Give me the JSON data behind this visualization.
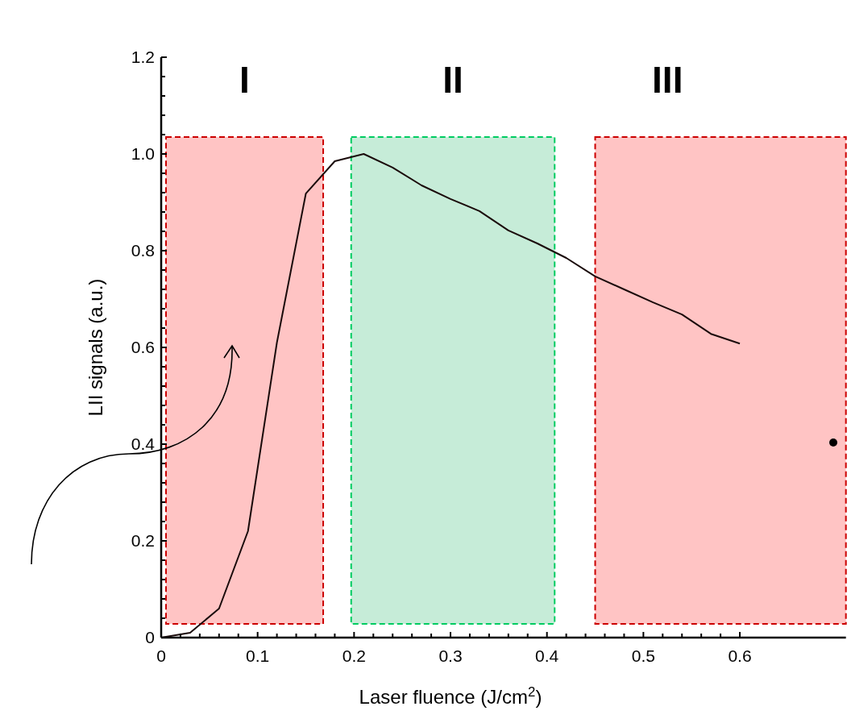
{
  "chart_data": {
    "type": "line",
    "xlabel": "Laser fluence (J/cm$^{2}$)",
    "ylabel": "LII signals (a.u.)",
    "x": [
      0,
      0.03,
      0.06,
      0.09,
      0.12,
      0.15,
      0.18,
      0.21,
      0.24,
      0.27,
      0.3,
      0.33,
      0.36,
      0.39,
      0.42,
      0.45,
      0.48,
      0.51,
      0.54,
      0.57,
      0.6
    ],
    "series": [
      {
        "color": "#1a0a0a",
        "values": [
          0,
          0.01,
          0.06,
          0.22,
          0.61,
          0.918,
          0.985,
          1.0,
          0.972,
          0.935,
          0.907,
          0.882,
          0.842,
          0.815,
          0.785,
          0.747,
          0.72,
          0.693,
          0.668,
          0.628,
          0.608
        ]
      }
    ],
    "xlim": [
      0,
      0.71
    ],
    "ylim": [
      0,
      1.2
    ],
    "xticks": [
      0,
      {
        "value": 0.02,
        "label": null
      },
      {
        "value": 0.04,
        "label": null
      },
      {
        "value": 0.06,
        "label": null
      },
      {
        "value": 0.08,
        "label": null
      },
      0.1,
      {
        "value": 0.12,
        "label": null
      },
      {
        "value": 0.14,
        "label": null
      },
      {
        "value": 0.16,
        "label": null
      },
      {
        "value": 0.18,
        "label": null
      },
      0.2,
      {
        "value": 0.22,
        "label": null
      },
      {
        "value": 0.24,
        "label": null
      },
      {
        "value": 0.26,
        "label": null
      },
      {
        "value": 0.28,
        "label": null
      },
      0.3,
      {
        "value": 0.32,
        "label": null
      },
      {
        "value": 0.34,
        "label": null
      },
      {
        "value": 0.36,
        "label": null
      },
      {
        "value": 0.38,
        "label": null
      },
      0.4,
      {
        "value": 0.42,
        "label": null
      },
      {
        "value": 0.44,
        "label": null
      },
      {
        "value": 0.46,
        "label": null
      },
      {
        "value": 0.48,
        "label": null
      },
      0.5,
      {
        "value": 0.52,
        "label": null
      },
      {
        "value": 0.54,
        "label": null
      },
      {
        "value": 0.56,
        "label": null
      },
      {
        "value": 0.58,
        "label": null
      },
      0.6
    ],
    "yticks": [
      0,
      {
        "value": 0.04,
        "label": null
      },
      {
        "value": 0.08,
        "label": null
      },
      {
        "value": 0.12,
        "label": null
      },
      {
        "value": 0.16,
        "label": null
      },
      {
        "value": 0.2,
        "label": "0.2"
      },
      {
        "value": 0.24,
        "label": null
      },
      {
        "value": 0.28,
        "label": null
      },
      {
        "value": 0.32,
        "label": null
      },
      {
        "value": 0.36,
        "label": null
      },
      {
        "value": 0.4,
        "label": "0.4"
      },
      {
        "value": 0.44,
        "label": null
      },
      {
        "value": 0.48,
        "label": null
      },
      {
        "value": 0.52,
        "label": null
      },
      {
        "value": 0.56,
        "label": null
      },
      {
        "value": 0.6,
        "label": "0.6"
      },
      {
        "value": 0.64,
        "label": null
      },
      {
        "value": 0.68,
        "label": null
      },
      {
        "value": 0.72,
        "label": null
      },
      {
        "value": 0.76,
        "label": null
      },
      {
        "value": 0.8,
        "label": "0.8"
      },
      {
        "value": 0.84,
        "label": null
      },
      {
        "value": 0.88,
        "label": null
      },
      {
        "value": 0.92,
        "label": null
      },
      {
        "value": 0.96,
        "label": null
      },
      {
        "value": 1.0,
        "label": "1.0"
      },
      {
        "value": 1.04,
        "label": null
      },
      {
        "value": 1.08,
        "label": null
      },
      {
        "value": 1.12,
        "label": null
      },
      {
        "value": 1.16,
        "label": null
      },
      {
        "value": 1.2,
        "label": "1.2"
      }
    ],
    "bands": [
      {
        "axis": "x",
        "from": 0.005,
        "to": 0.168,
        "color": "#ffc4c4",
        "label": "I"
      },
      {
        "axis": "x",
        "from": 0.197,
        "to": 0.408,
        "color": "#c6ecd8",
        "label": "II"
      },
      {
        "axis": "x",
        "from": 0.45,
        "to": 0.71,
        "color": "#ffc4c4",
        "label": "III"
      }
    ],
    "grid": false,
    "marker": "none",
    "line_style": "solid"
  }
}
